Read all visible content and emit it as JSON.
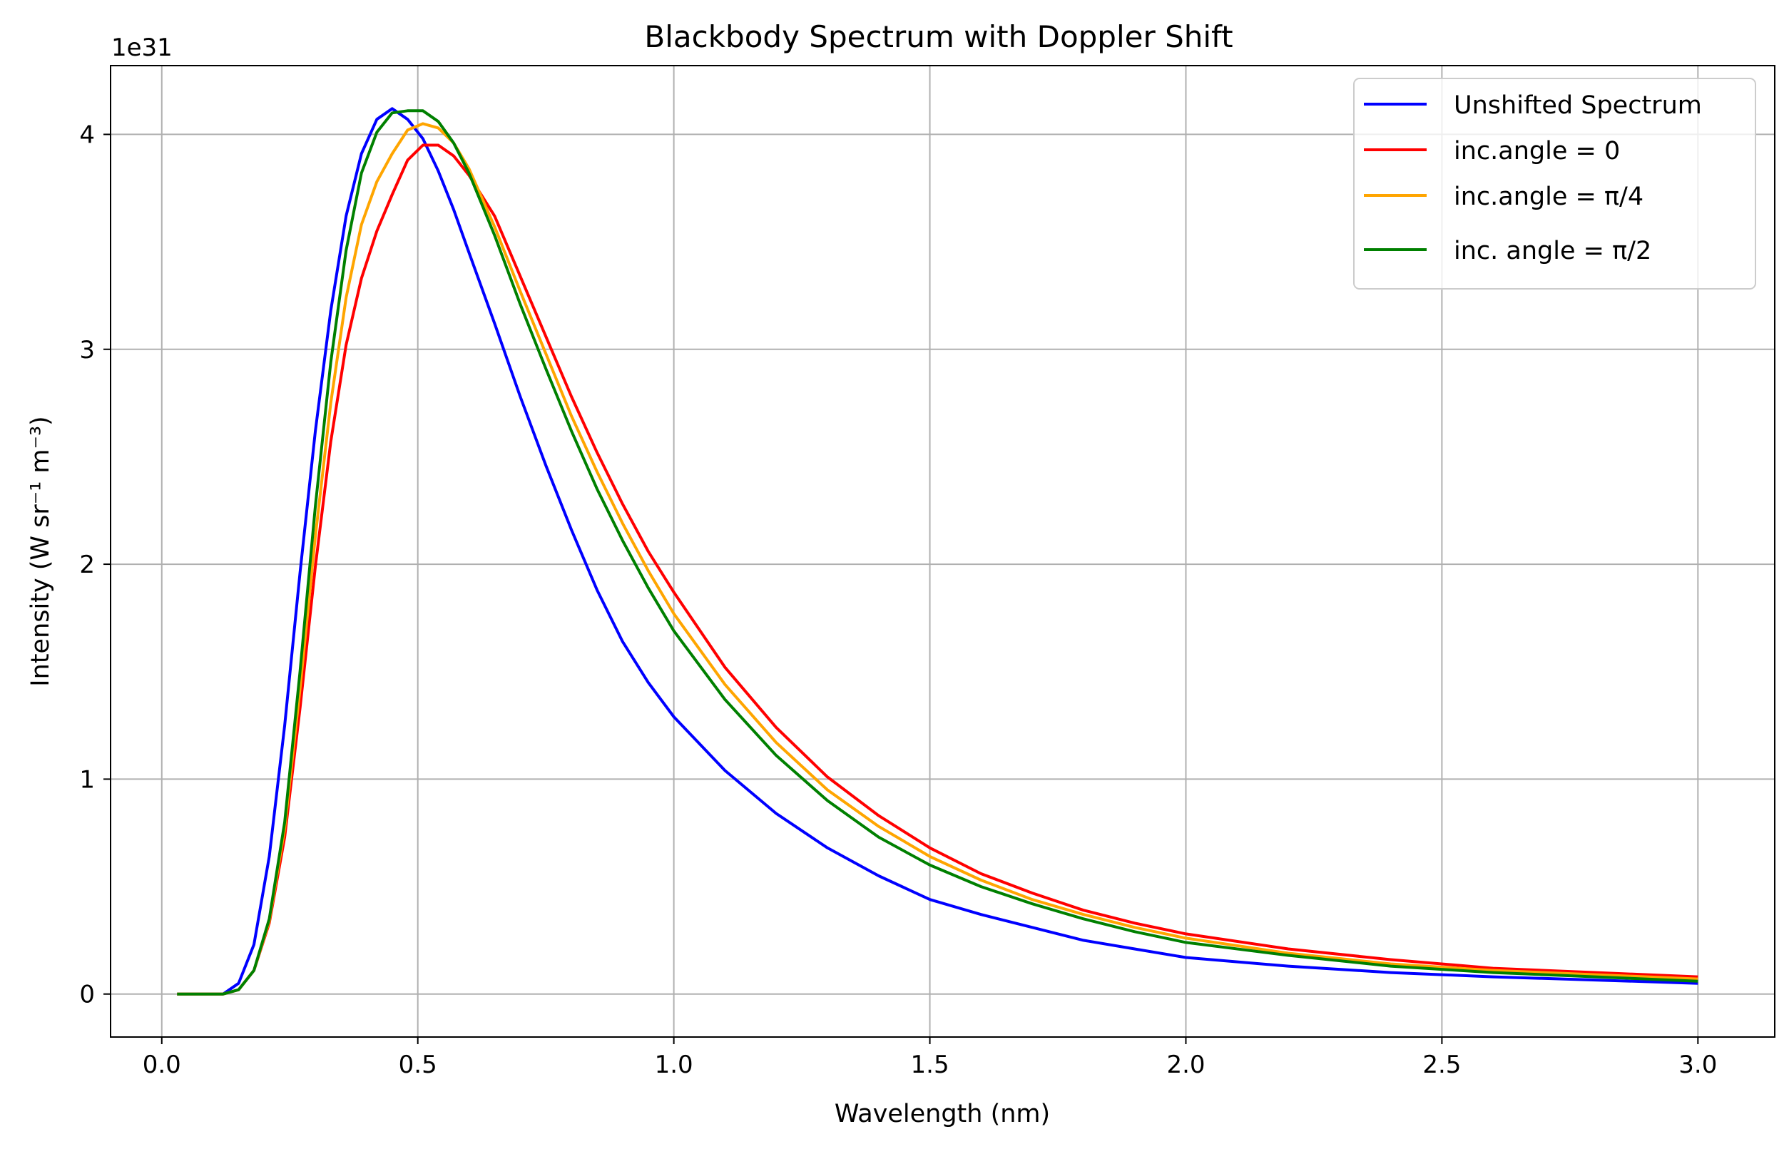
{
  "chart_data": {
    "type": "line",
    "title": "Blackbody Spectrum with Doppler Shift",
    "xlabel": "Wavelength (nm)",
    "ylabel": "Intensity (W sr⁻¹ m⁻³)",
    "offset_text": "1e31",
    "xlim": [
      -0.1,
      3.15
    ],
    "ylim": [
      -0.2,
      4.32
    ],
    "y_scale_multiplier": 1e+31,
    "grid": true,
    "legend_position": "top-right",
    "x_ticks": [
      0.0,
      0.5,
      1.0,
      1.5,
      2.0,
      2.5,
      3.0
    ],
    "x_tick_labels": [
      "0.0",
      "0.5",
      "1.0",
      "1.5",
      "2.0",
      "2.5",
      "3.0"
    ],
    "y_ticks": [
      0,
      1,
      2,
      3,
      4
    ],
    "y_tick_labels": [
      "0",
      "1",
      "2",
      "3",
      "4"
    ],
    "series": [
      {
        "name": "Unshifted Spectrum",
        "color": "#0000ff",
        "points": [
          [
            0.03,
            0.0
          ],
          [
            0.06,
            0.0
          ],
          [
            0.09,
            0.0
          ],
          [
            0.12,
            0.0
          ],
          [
            0.15,
            0.05
          ],
          [
            0.18,
            0.23
          ],
          [
            0.21,
            0.64
          ],
          [
            0.24,
            1.25
          ],
          [
            0.27,
            1.96
          ],
          [
            0.3,
            2.62
          ],
          [
            0.33,
            3.18
          ],
          [
            0.36,
            3.62
          ],
          [
            0.39,
            3.91
          ],
          [
            0.42,
            4.07
          ],
          [
            0.45,
            4.12
          ],
          [
            0.48,
            4.07
          ],
          [
            0.51,
            3.98
          ],
          [
            0.54,
            3.83
          ],
          [
            0.57,
            3.65
          ],
          [
            0.6,
            3.45
          ],
          [
            0.65,
            3.12
          ],
          [
            0.7,
            2.78
          ],
          [
            0.75,
            2.46
          ],
          [
            0.8,
            2.16
          ],
          [
            0.85,
            1.88
          ],
          [
            0.9,
            1.64
          ],
          [
            0.95,
            1.45
          ],
          [
            1.0,
            1.29
          ],
          [
            1.1,
            1.04
          ],
          [
            1.2,
            0.84
          ],
          [
            1.3,
            0.68
          ],
          [
            1.4,
            0.55
          ],
          [
            1.5,
            0.44
          ],
          [
            1.6,
            0.37
          ],
          [
            1.7,
            0.31
          ],
          [
            1.8,
            0.25
          ],
          [
            1.9,
            0.21
          ],
          [
            2.0,
            0.17
          ],
          [
            2.2,
            0.13
          ],
          [
            2.4,
            0.1
          ],
          [
            2.6,
            0.08
          ],
          [
            2.8,
            0.065
          ],
          [
            3.0,
            0.05
          ]
        ]
      },
      {
        "name": "inc.angle = 0",
        "color": "#ff0000",
        "points": [
          [
            0.03,
            0.0
          ],
          [
            0.06,
            0.0
          ],
          [
            0.09,
            0.0
          ],
          [
            0.12,
            0.0
          ],
          [
            0.15,
            0.02
          ],
          [
            0.18,
            0.11
          ],
          [
            0.21,
            0.33
          ],
          [
            0.24,
            0.73
          ],
          [
            0.27,
            1.33
          ],
          [
            0.3,
            1.99
          ],
          [
            0.33,
            2.57
          ],
          [
            0.36,
            3.02
          ],
          [
            0.39,
            3.33
          ],
          [
            0.42,
            3.55
          ],
          [
            0.45,
            3.72
          ],
          [
            0.48,
            3.88
          ],
          [
            0.51,
            3.95
          ],
          [
            0.54,
            3.95
          ],
          [
            0.57,
            3.9
          ],
          [
            0.6,
            3.81
          ],
          [
            0.65,
            3.62
          ],
          [
            0.7,
            3.34
          ],
          [
            0.75,
            3.06
          ],
          [
            0.8,
            2.78
          ],
          [
            0.85,
            2.52
          ],
          [
            0.9,
            2.28
          ],
          [
            0.95,
            2.06
          ],
          [
            1.0,
            1.87
          ],
          [
            1.1,
            1.52
          ],
          [
            1.2,
            1.24
          ],
          [
            1.3,
            1.01
          ],
          [
            1.4,
            0.83
          ],
          [
            1.5,
            0.68
          ],
          [
            1.6,
            0.56
          ],
          [
            1.7,
            0.47
          ],
          [
            1.8,
            0.39
          ],
          [
            1.9,
            0.33
          ],
          [
            2.0,
            0.28
          ],
          [
            2.2,
            0.21
          ],
          [
            2.4,
            0.16
          ],
          [
            2.6,
            0.12
          ],
          [
            2.8,
            0.1
          ],
          [
            3.0,
            0.08
          ]
        ]
      },
      {
        "name": "inc.angle = π/4",
        "color": "#ffa500",
        "points": [
          [
            0.03,
            0.0
          ],
          [
            0.06,
            0.0
          ],
          [
            0.09,
            0.0
          ],
          [
            0.12,
            0.0
          ],
          [
            0.15,
            0.02
          ],
          [
            0.18,
            0.11
          ],
          [
            0.21,
            0.34
          ],
          [
            0.24,
            0.77
          ],
          [
            0.27,
            1.42
          ],
          [
            0.3,
            2.13
          ],
          [
            0.33,
            2.75
          ],
          [
            0.36,
            3.24
          ],
          [
            0.39,
            3.58
          ],
          [
            0.42,
            3.78
          ],
          [
            0.45,
            3.91
          ],
          [
            0.48,
            4.02
          ],
          [
            0.51,
            4.05
          ],
          [
            0.54,
            4.03
          ],
          [
            0.57,
            3.96
          ],
          [
            0.6,
            3.84
          ],
          [
            0.65,
            3.57
          ],
          [
            0.7,
            3.27
          ],
          [
            0.75,
            2.98
          ],
          [
            0.8,
            2.69
          ],
          [
            0.85,
            2.43
          ],
          [
            0.9,
            2.19
          ],
          [
            0.95,
            1.97
          ],
          [
            1.0,
            1.77
          ],
          [
            1.1,
            1.44
          ],
          [
            1.2,
            1.17
          ],
          [
            1.3,
            0.95
          ],
          [
            1.4,
            0.78
          ],
          [
            1.5,
            0.64
          ],
          [
            1.6,
            0.53
          ],
          [
            1.7,
            0.44
          ],
          [
            1.8,
            0.37
          ],
          [
            1.9,
            0.31
          ],
          [
            2.0,
            0.26
          ],
          [
            2.2,
            0.19
          ],
          [
            2.4,
            0.14
          ],
          [
            2.6,
            0.11
          ],
          [
            2.8,
            0.09
          ],
          [
            3.0,
            0.07
          ]
        ]
      },
      {
        "name": "inc. angle = π/2",
        "color": "#008000",
        "points": [
          [
            0.03,
            0.0
          ],
          [
            0.06,
            0.0
          ],
          [
            0.09,
            0.0
          ],
          [
            0.12,
            0.0
          ],
          [
            0.15,
            0.02
          ],
          [
            0.18,
            0.11
          ],
          [
            0.21,
            0.35
          ],
          [
            0.24,
            0.8
          ],
          [
            0.27,
            1.5
          ],
          [
            0.3,
            2.27
          ],
          [
            0.33,
            2.94
          ],
          [
            0.36,
            3.46
          ],
          [
            0.39,
            3.82
          ],
          [
            0.42,
            4.01
          ],
          [
            0.45,
            4.1
          ],
          [
            0.48,
            4.11
          ],
          [
            0.51,
            4.11
          ],
          [
            0.54,
            4.06
          ],
          [
            0.57,
            3.96
          ],
          [
            0.6,
            3.82
          ],
          [
            0.65,
            3.53
          ],
          [
            0.7,
            3.21
          ],
          [
            0.75,
            2.91
          ],
          [
            0.8,
            2.62
          ],
          [
            0.85,
            2.35
          ],
          [
            0.9,
            2.11
          ],
          [
            0.95,
            1.89
          ],
          [
            1.0,
            1.69
          ],
          [
            1.1,
            1.37
          ],
          [
            1.2,
            1.11
          ],
          [
            1.3,
            0.9
          ],
          [
            1.4,
            0.73
          ],
          [
            1.5,
            0.6
          ],
          [
            1.6,
            0.5
          ],
          [
            1.7,
            0.42
          ],
          [
            1.8,
            0.35
          ],
          [
            1.9,
            0.29
          ],
          [
            2.0,
            0.24
          ],
          [
            2.2,
            0.18
          ],
          [
            2.4,
            0.13
          ],
          [
            2.6,
            0.1
          ],
          [
            2.8,
            0.08
          ],
          [
            3.0,
            0.06
          ]
        ]
      }
    ]
  }
}
